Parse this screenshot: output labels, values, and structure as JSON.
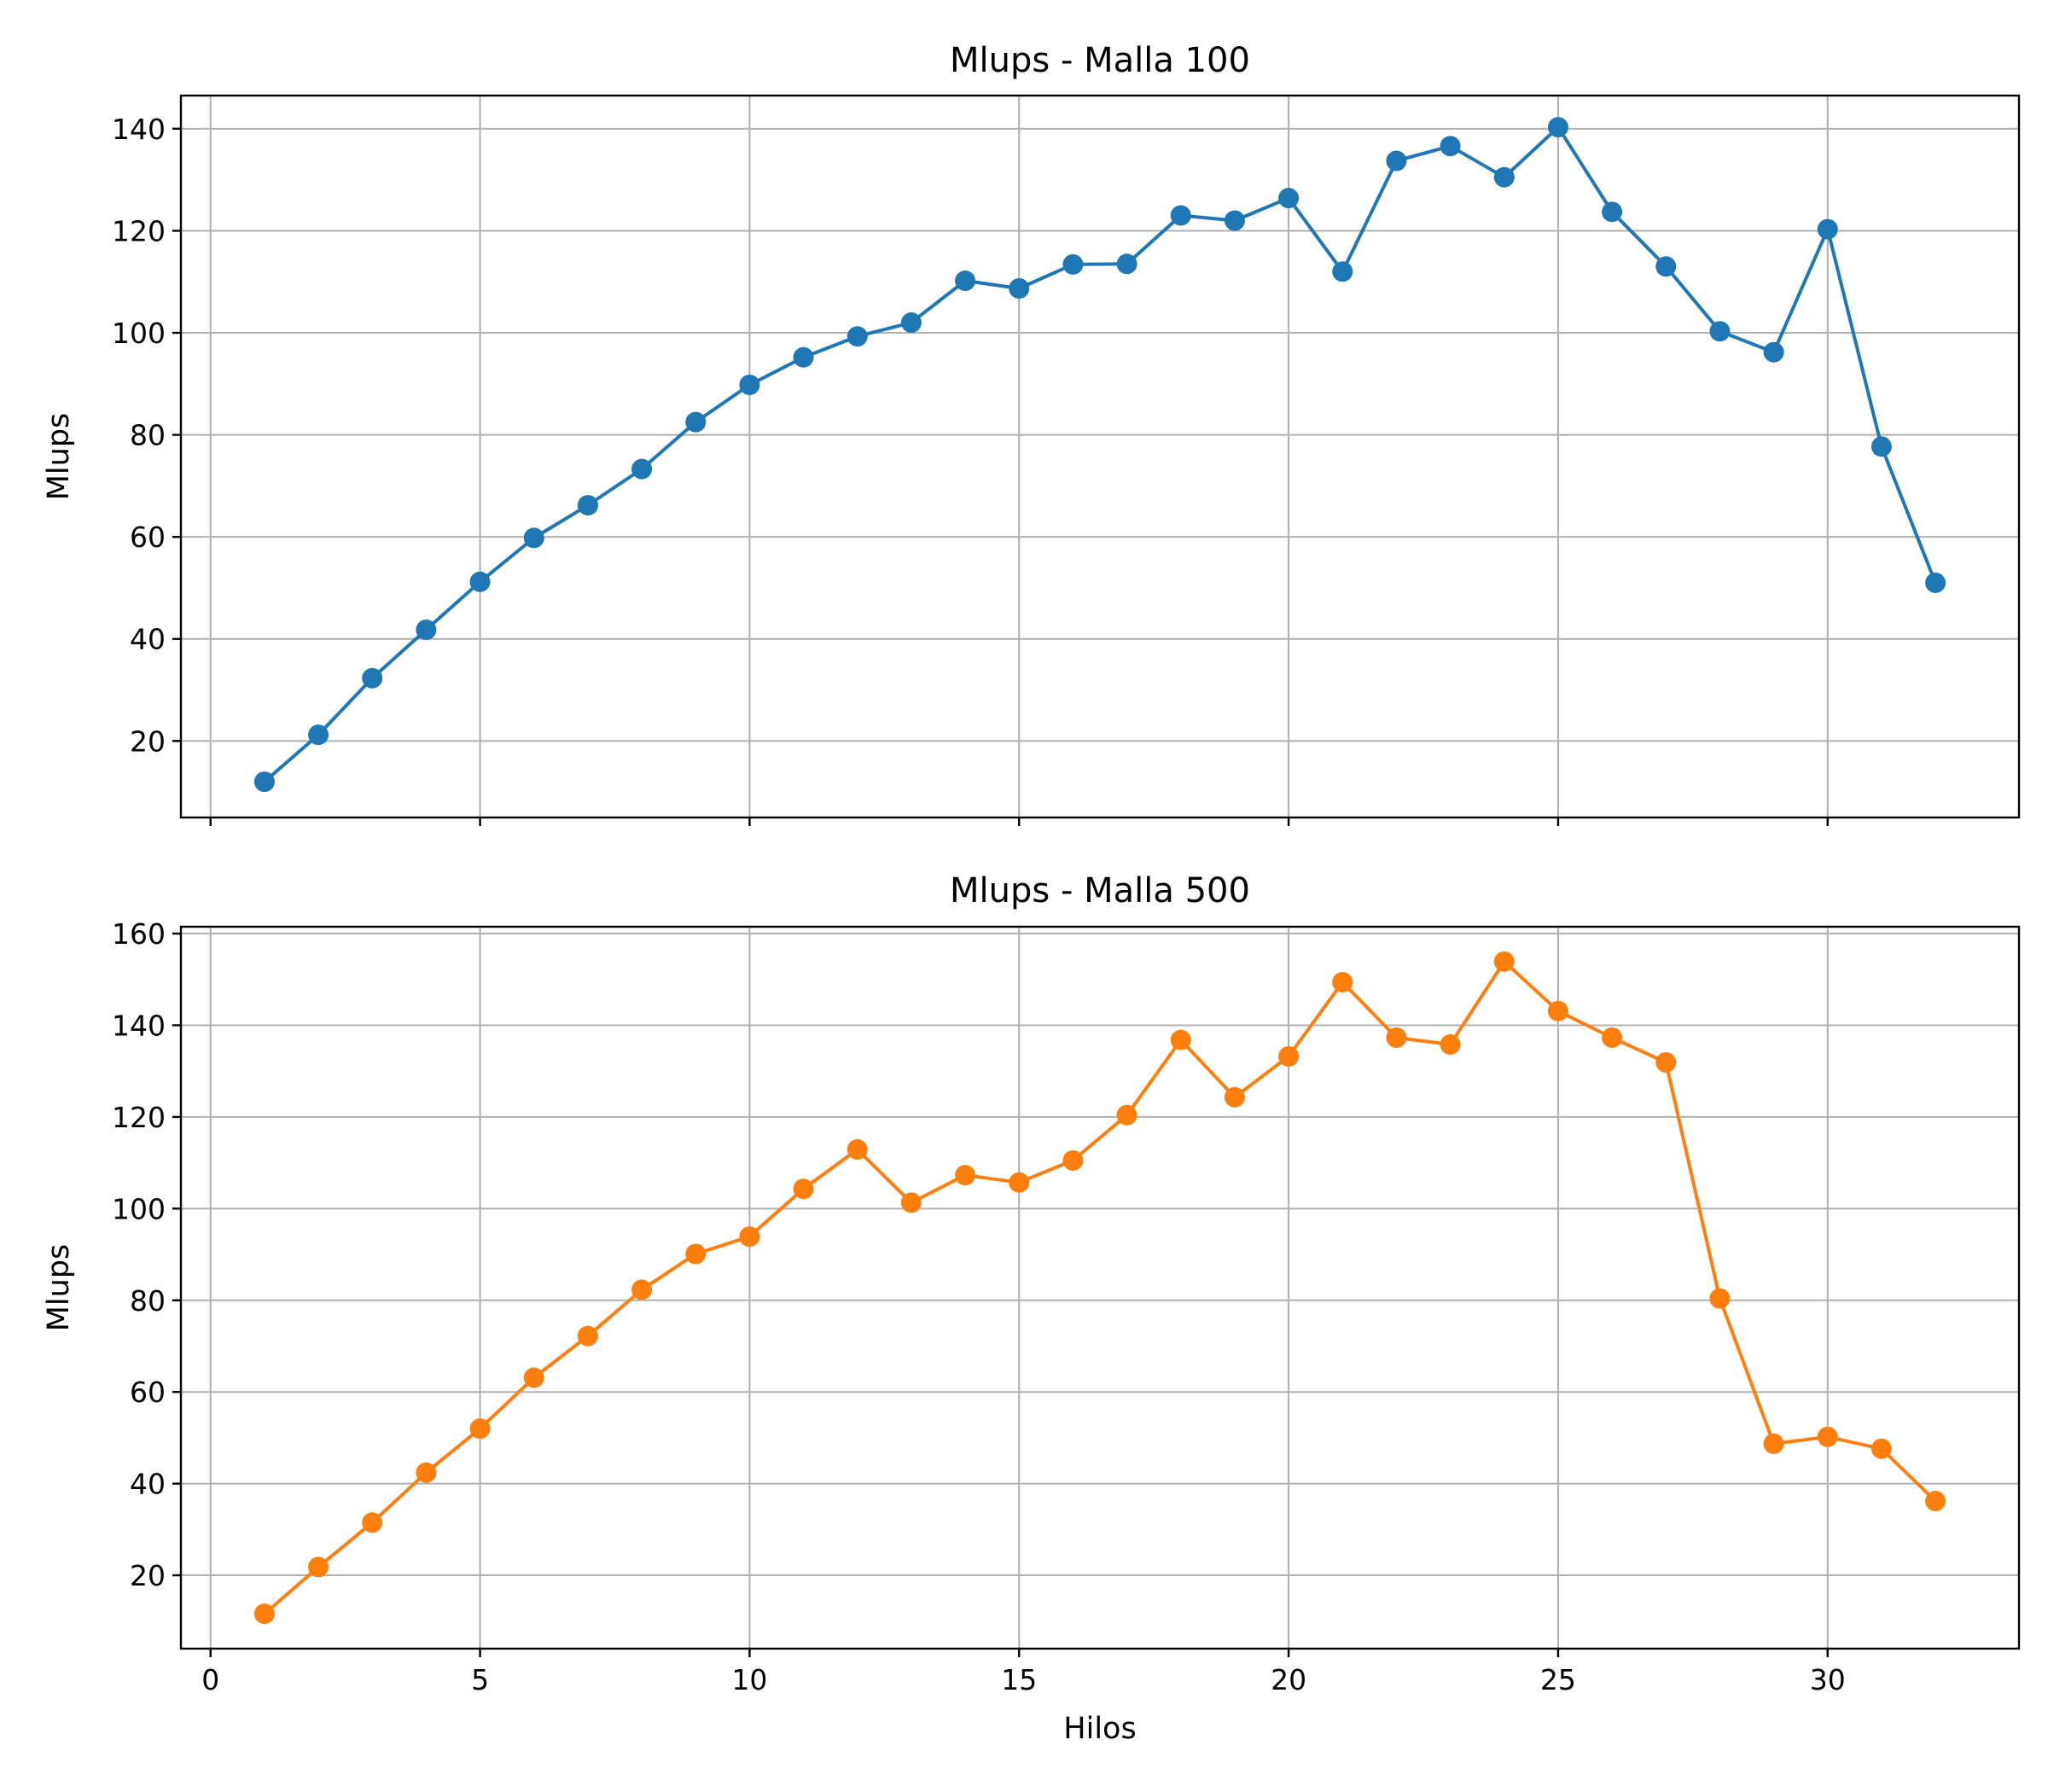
{
  "chart_data": [
    {
      "type": "line",
      "title": "Mlups - Malla 100",
      "xlabel": "",
      "ylabel": "Mlups",
      "xlim": [
        -0.55,
        33.55
      ],
      "ylim": [
        5,
        146.5
      ],
      "xticks": [
        0,
        5,
        10,
        15,
        20,
        25,
        30
      ],
      "xtick_labels_visible": false,
      "yticks": [
        20,
        40,
        60,
        80,
        100,
        120,
        140
      ],
      "grid": true,
      "x": [
        1,
        2,
        3,
        4,
        5,
        6,
        7,
        8,
        9,
        10,
        11,
        12,
        13,
        14,
        15,
        16,
        17,
        18,
        19,
        20,
        21,
        22,
        23,
        24,
        25,
        26,
        27,
        28,
        29,
        30,
        31,
        32
      ],
      "series": [
        {
          "color": "#1f77b4",
          "marker": "circle",
          "values": [
            12.0,
            21.2,
            32.3,
            41.8,
            51.2,
            59.8,
            66.2,
            73.3,
            82.5,
            89.8,
            95.2,
            99.3,
            102.0,
            110.2,
            108.7,
            113.4,
            113.5,
            123.0,
            122.0,
            126.4,
            112.0,
            133.7,
            136.6,
            130.5,
            140.3,
            123.7,
            113.0,
            100.3,
            96.2,
            120.3,
            77.7,
            51.0
          ]
        }
      ]
    },
    {
      "type": "line",
      "title": "Mlups - Malla 500",
      "xlabel": "Hilos",
      "ylabel": "Mlups",
      "xlim": [
        -0.55,
        33.55
      ],
      "ylim": [
        4,
        161.5
      ],
      "xticks": [
        0,
        5,
        10,
        15,
        20,
        25,
        30
      ],
      "xtick_labels_visible": true,
      "yticks": [
        20,
        40,
        60,
        80,
        100,
        120,
        140,
        160
      ],
      "grid": true,
      "x": [
        1,
        2,
        3,
        4,
        5,
        6,
        7,
        8,
        9,
        10,
        11,
        12,
        13,
        14,
        15,
        16,
        17,
        18,
        19,
        20,
        21,
        22,
        23,
        24,
        25,
        26,
        27,
        28,
        29,
        30,
        31,
        32
      ],
      "series": [
        {
          "color": "#ff7f0e",
          "marker": "circle",
          "values": [
            11.6,
            21.8,
            31.5,
            42.4,
            52.0,
            63.1,
            72.2,
            82.3,
            90.1,
            93.9,
            104.3,
            112.9,
            101.3,
            107.3,
            105.7,
            110.5,
            120.4,
            136.8,
            124.3,
            133.2,
            149.4,
            137.3,
            135.8,
            153.9,
            143.1,
            137.3,
            131.9,
            80.4,
            48.7,
            50.2,
            47.6,
            36.2
          ]
        }
      ]
    }
  ]
}
